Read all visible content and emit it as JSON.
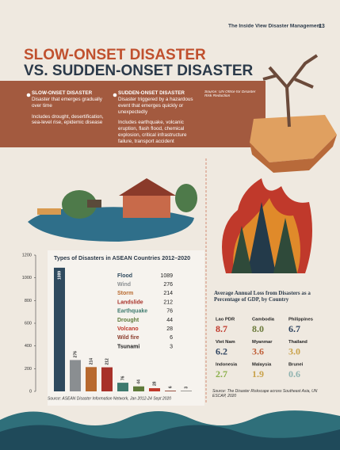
{
  "header": {
    "magazine": "The Inside View Disaster Management",
    "page": "13"
  },
  "title": {
    "line1": "SLOW-ONSET DISASTER",
    "line2": "VS. SUDDEN-ONSET DISASTER"
  },
  "definitions": {
    "slow": {
      "heading": "SLOW-ONSET DISASTER",
      "text": "Disaster that emerges gradually over time",
      "examples": "Includes drought, desertification, sea-level rise, epidemic disease"
    },
    "sudden": {
      "heading": "SUDDEN-ONSET DISASTER",
      "text": "Disaster triggered by a hazardous event that emerges quickly or unexpectedly",
      "examples": "Includes earthquake, volcanic eruption, flash flood, chemical explosion, critical infrastructure failure, transport accident"
    },
    "source": "Source: UN Office for Disaster Risk Reduction"
  },
  "chart_data": {
    "type": "bar",
    "title": "Types of Disasters in ASEAN Countries 2012–2020",
    "categories": [
      "Flood",
      "Wind",
      "Storm",
      "Landslide",
      "Earthquake",
      "Drought",
      "Volcano",
      "Wild fire",
      "Tsunami"
    ],
    "values": [
      1089,
      276,
      214,
      212,
      76,
      44,
      28,
      6,
      3
    ],
    "colors": [
      "#2f4a5e",
      "#8a8e91",
      "#b8692e",
      "#a8322a",
      "#3e7a6e",
      "#5e7a3a",
      "#c0392b",
      "#8a3a2a",
      "#222222"
    ],
    "ylim": [
      0,
      1200
    ],
    "yticks": [
      0,
      200,
      400,
      600,
      800,
      1000,
      1200
    ],
    "source": "Source: ASEAN Disaster Information Network, Jan 2012-24 Sept 2020"
  },
  "gdp_loss": {
    "title": "Average Annual Loss from Disasters as a Percentage of GDP, by Country",
    "countries": [
      {
        "name": "Lao PDR",
        "value": "8.7",
        "color": "#c0392b"
      },
      {
        "name": "Cambodia",
        "value": "8.0",
        "color": "#6b7a3a"
      },
      {
        "name": "Philippines",
        "value": "6.7",
        "color": "#2f4460"
      },
      {
        "name": "Viet Nam",
        "value": "6.2",
        "color": "#2f4460"
      },
      {
        "name": "Myanmar",
        "value": "3.6",
        "color": "#c0603a"
      },
      {
        "name": "Thailand",
        "value": "3.0",
        "color": "#c9a24a"
      },
      {
        "name": "Indonesia",
        "value": "2.7",
        "color": "#8bb04a"
      },
      {
        "name": "Malaysia",
        "value": "1.9",
        "color": "#c9a24a"
      },
      {
        "name": "Brunei",
        "value": "0.6",
        "color": "#8fb3b0"
      }
    ],
    "source": "Source: The Disaster Riskscape across Southeast Asia, UN ESCAP, 2020"
  }
}
